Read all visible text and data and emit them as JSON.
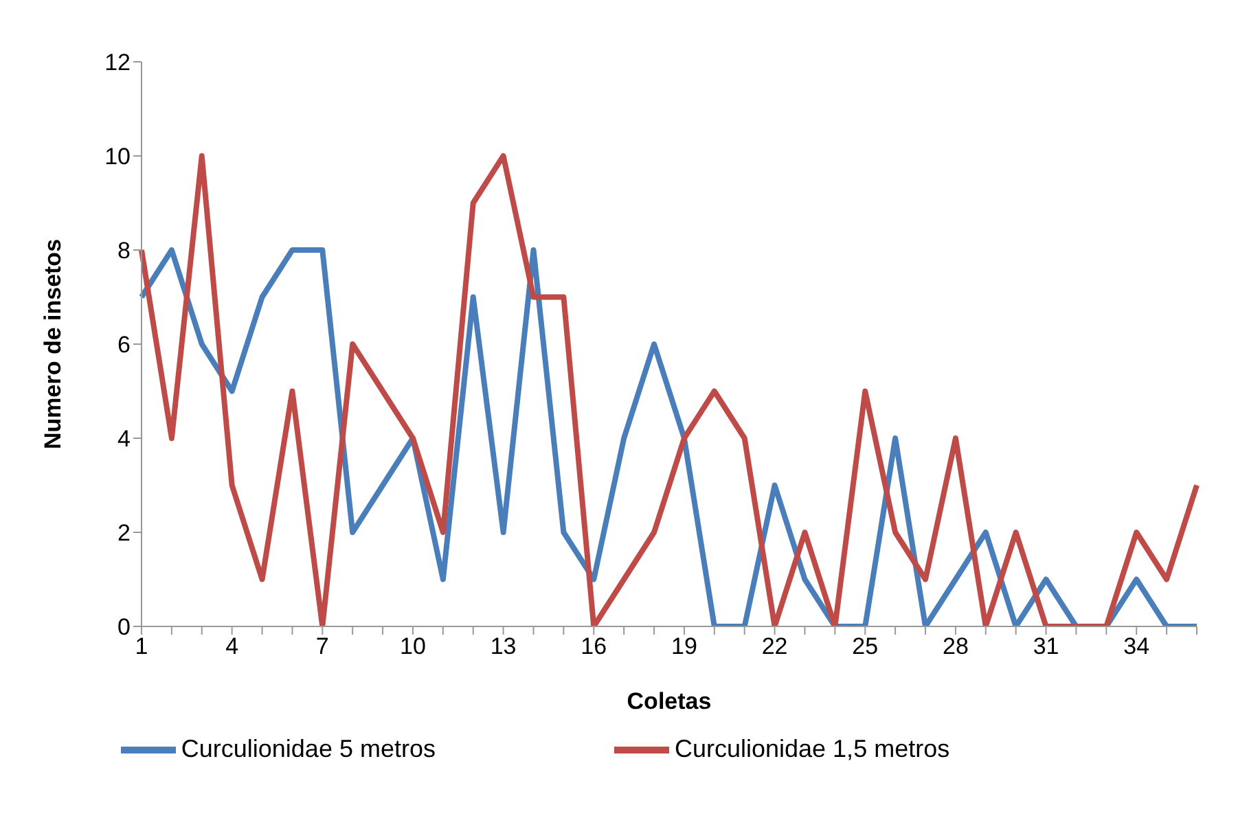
{
  "chart_data": {
    "type": "line",
    "xlabel": "Coletas",
    "ylabel": "Numero de insetos",
    "categories": [
      "1",
      null,
      null,
      "4",
      null,
      null,
      "7",
      null,
      null,
      "10",
      null,
      null,
      "13",
      null,
      null,
      "16",
      null,
      null,
      "19",
      null,
      null,
      "22",
      null,
      null,
      "25",
      null,
      null,
      "28",
      null,
      null,
      "31",
      null,
      null,
      "34",
      null,
      null
    ],
    "series": [
      {
        "name": "Curculionidae 5 metros",
        "color": "#4a7ebb",
        "values": [
          7,
          8,
          6,
          5,
          7,
          8,
          8,
          2,
          3,
          4,
          1,
          7,
          2,
          8,
          2,
          1,
          4,
          6,
          4,
          0,
          0,
          3,
          1,
          0,
          0,
          4,
          0,
          1,
          2,
          0,
          1,
          0,
          0,
          1,
          0,
          0
        ]
      },
      {
        "name": "Curculionidae 1,5 metros",
        "color": "#be4b48",
        "values": [
          8,
          4,
          10,
          3,
          1,
          5,
          0,
          6,
          5,
          4,
          2,
          9,
          10,
          7,
          7,
          0,
          1,
          2,
          4,
          5,
          4,
          0,
          2,
          0,
          5,
          2,
          1,
          4,
          0,
          2,
          0,
          0,
          0,
          2,
          1,
          3
        ]
      }
    ],
    "ylim": [
      0,
      12
    ],
    "yticks": [
      0,
      2,
      4,
      6,
      8,
      10,
      12
    ],
    "grid": false,
    "legend": "bottom",
    "marker": "none",
    "line_style": "solid"
  }
}
